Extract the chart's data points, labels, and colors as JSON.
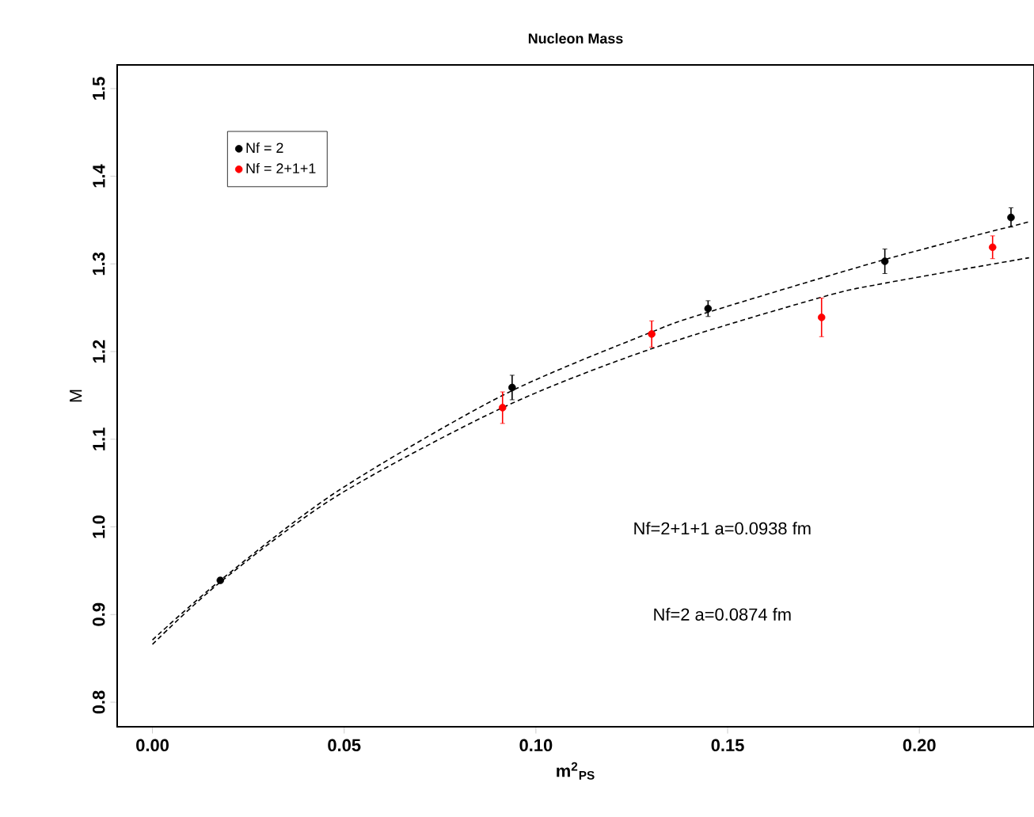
{
  "chart_data": {
    "type": "scatter",
    "title": "Nucleon Mass",
    "xlabel": "m$^{2}$$_{PS}$",
    "ylabel": "M",
    "xlim": [
      -0.0092,
      0.2299
    ],
    "ylim": [
      0.772,
      1.527
    ],
    "xticks": [
      {
        "value": 0.0,
        "label": "0.00"
      },
      {
        "value": 0.05,
        "label": "0.05"
      },
      {
        "value": 0.1,
        "label": "0.10"
      },
      {
        "value": 0.15,
        "label": "0.15"
      },
      {
        "value": 0.2,
        "label": "0.20"
      }
    ],
    "yticks": [
      {
        "value": 0.8,
        "label": "0.8"
      },
      {
        "value": 0.9,
        "label": "0.9"
      },
      {
        "value": 1.0,
        "label": "1.0"
      },
      {
        "value": 1.1,
        "label": "1.1"
      },
      {
        "value": 1.2,
        "label": "1.2"
      },
      {
        "value": 1.3,
        "label": "1.3"
      },
      {
        "value": 1.4,
        "label": "1.4"
      },
      {
        "value": 1.5,
        "label": "1.5"
      }
    ],
    "legend": "top left",
    "grid": false,
    "series": [
      {
        "type": "line",
        "color": "#000000",
        "line_style": "dashed",
        "marker": "none",
        "x": [
          0.0,
          0.0177,
          0.048,
          0.0913,
          0.13,
          0.145,
          0.191,
          0.2286
        ],
        "values": [
          0.871,
          0.939,
          1.04,
          1.15,
          1.222,
          1.245,
          1.305,
          1.348
        ]
      },
      {
        "type": "line",
        "color": "#000000",
        "line_style": "dashed",
        "marker": "none",
        "x": [
          0.0,
          0.0177,
          0.048,
          0.0913,
          0.13,
          0.1745,
          0.191,
          0.2286
        ],
        "values": [
          0.866,
          0.937,
          1.035,
          1.136,
          1.203,
          1.262,
          1.278,
          1.307
        ]
      },
      {
        "name": "Nf = 2",
        "color": "#000000",
        "marker": "circle",
        "x": [
          0.0177,
          0.0938,
          0.1449,
          0.191,
          0.2239
        ],
        "values": [
          0.939,
          1.159,
          1.249,
          1.303,
          1.353
        ],
        "errors": [
          0.003,
          0.014,
          0.009,
          0.014,
          0.011
        ]
      },
      {
        "name": "Nf = 2+1+1",
        "color": "#ff0000",
        "marker": "circle",
        "x": [
          0.0913,
          0.1302,
          0.1745,
          0.2191
        ],
        "values": [
          1.136,
          1.22,
          1.239,
          1.319
        ],
        "errors": [
          0.018,
          0.015,
          0.022,
          0.013
        ]
      }
    ],
    "annotations": [
      "Nf=2+1+1 a=0.0938 fm",
      "Nf=2     a=0.0874 fm"
    ]
  }
}
